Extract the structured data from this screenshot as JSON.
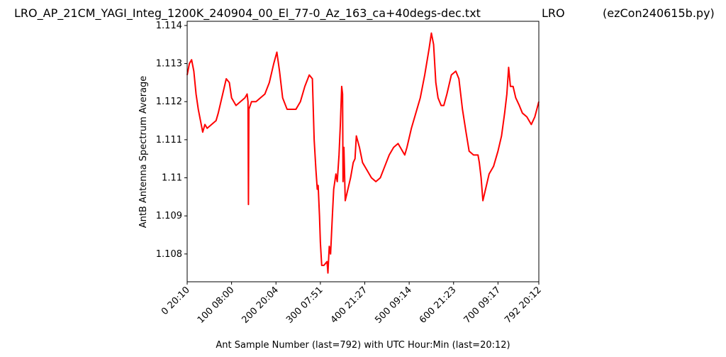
{
  "chart_data": {
    "type": "line",
    "title": [
      "LRO_AP_21CM_YAGI_Integ_1200K_240904_00_El_77-0_Az_163_ca+40degs-dec.txt",
      "LRO",
      "(ezCon240615b.py)"
    ],
    "x_label": "Ant Sample Number (last=792) with UTC Hour:Min (last=20:12)",
    "y_label": "AntB Antenna Spectrum Average",
    "xlim": [
      0,
      792
    ],
    "ylim": [
      1.10727,
      1.11411
    ],
    "xticks": [
      {
        "value": 0,
        "label": "0  20:10"
      },
      {
        "value": 100,
        "label": "100  08:00"
      },
      {
        "value": 200,
        "label": "200  20:04"
      },
      {
        "value": 300,
        "label": "300  07:51"
      },
      {
        "value": 400,
        "label": "400  21:27"
      },
      {
        "value": 500,
        "label": "500  09:14"
      },
      {
        "value": 600,
        "label": "600  21:23"
      },
      {
        "value": 700,
        "label": "700  09:17"
      },
      {
        "value": 792,
        "label": "792  20:12"
      }
    ],
    "yticks": [
      1.108,
      1.109,
      1.11,
      1.111,
      1.112,
      1.113,
      1.114
    ],
    "grid": false,
    "series": [
      {
        "color": "#ff0000",
        "x": [
          0,
          5,
          10,
          15,
          20,
          25,
          30,
          35,
          40,
          45,
          55,
          65,
          70,
          80,
          88,
          95,
          100,
          110,
          120,
          130,
          135,
          137,
          138,
          139,
          145,
          155,
          165,
          175,
          185,
          195,
          202,
          208,
          215,
          225,
          235,
          245,
          255,
          265,
          275,
          282,
          286,
          290,
          293,
          295,
          298,
          300,
          303,
          308,
          315,
          317,
          320,
          323,
          327,
          330,
          335,
          338,
          342,
          345,
          348,
          350,
          351,
          353,
          356,
          360,
          368,
          374,
          378,
          381,
          388,
          395,
          405,
          415,
          425,
          435,
          445,
          455,
          465,
          475,
          485,
          490,
          495,
          505,
          515,
          525,
          535,
          545,
          550,
          555,
          560,
          565,
          572,
          578,
          585,
          595,
          605,
          612,
          620,
          628,
          635,
          645,
          655,
          658,
          662,
          666,
          672,
          680,
          690,
          700,
          708,
          715,
          720,
          724,
          728,
          734,
          740,
          748,
          755,
          765,
          775,
          783,
          792
        ],
        "values": [
          1.1127,
          1.113,
          1.1131,
          1.1128,
          1.1122,
          1.1118,
          1.1115,
          1.1112,
          1.1114,
          1.1113,
          1.1114,
          1.1115,
          1.1117,
          1.1122,
          1.1126,
          1.1125,
          1.1121,
          1.1119,
          1.112,
          1.1121,
          1.1122,
          1.112,
          1.1093,
          1.1118,
          1.112,
          1.112,
          1.1121,
          1.1122,
          1.1125,
          1.113,
          1.1133,
          1.1128,
          1.1121,
          1.1118,
          1.1118,
          1.1118,
          1.112,
          1.1124,
          1.1127,
          1.1126,
          1.111,
          1.1102,
          1.1097,
          1.1098,
          1.109,
          1.1083,
          1.1077,
          1.1077,
          1.1078,
          1.1075,
          1.1082,
          1.108,
          1.109,
          1.1097,
          1.1101,
          1.1099,
          1.1106,
          1.1114,
          1.1124,
          1.1122,
          1.1099,
          1.1108,
          1.1094,
          1.1096,
          1.11,
          1.1104,
          1.1105,
          1.1111,
          1.1108,
          1.1104,
          1.1102,
          1.11,
          1.1099,
          1.11,
          1.1103,
          1.1106,
          1.1108,
          1.1109,
          1.1107,
          1.1106,
          1.1108,
          1.1113,
          1.1117,
          1.1121,
          1.1127,
          1.1134,
          1.1138,
          1.1135,
          1.1125,
          1.1121,
          1.1119,
          1.1119,
          1.1122,
          1.1127,
          1.1128,
          1.1126,
          1.1118,
          1.1112,
          1.1107,
          1.1106,
          1.1106,
          1.1104,
          1.11,
          1.1094,
          1.1097,
          1.1101,
          1.1103,
          1.1107,
          1.1111,
          1.1117,
          1.1122,
          1.1129,
          1.1124,
          1.1124,
          1.1121,
          1.1119,
          1.1117,
          1.1116,
          1.1114,
          1.1116,
          1.112
        ]
      }
    ]
  }
}
